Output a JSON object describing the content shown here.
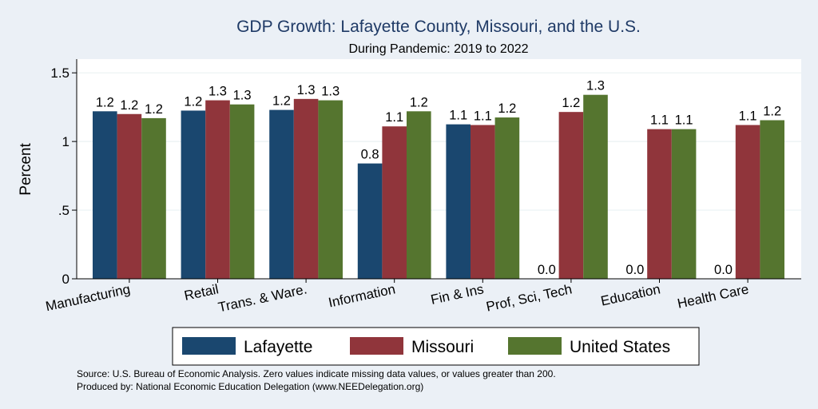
{
  "chart_data": {
    "type": "bar",
    "title": "GDP Growth: Lafayette County, Missouri, and the U.S.",
    "subtitle": "During Pandemic: 2019 to 2022",
    "xlabel": "",
    "ylabel": "Percent",
    "ylim": [
      0,
      1.6
    ],
    "yticks": [
      0,
      0.5,
      1,
      1.5
    ],
    "ytick_labels": [
      "0",
      ".5",
      "1",
      "1.5"
    ],
    "grid": true,
    "categories": [
      "Manufacturing",
      "Retail",
      "Trans. & Ware.",
      "Information",
      "Fin & Ins",
      "Prof, Sci, Tech",
      "Education",
      "Health Care"
    ],
    "series": [
      {
        "name": "Lafayette",
        "color": "#1a476f",
        "values": [
          1.22,
          1.225,
          1.23,
          0.84,
          1.125,
          0,
          0,
          0
        ],
        "labels": [
          "1.2",
          "1.2",
          "1.2",
          "0.8",
          "1.1",
          "0.0",
          "0.0",
          "0.0"
        ]
      },
      {
        "name": "Missouri",
        "color": "#90353b",
        "values": [
          1.2,
          1.3,
          1.31,
          1.11,
          1.12,
          1.215,
          1.09,
          1.12
        ],
        "labels": [
          "1.2",
          "1.3",
          "1.3",
          "1.1",
          "1.1",
          "1.2",
          "1.1",
          "1.1"
        ]
      },
      {
        "name": "United States",
        "color": "#55752f",
        "values": [
          1.17,
          1.27,
          1.3,
          1.22,
          1.175,
          1.34,
          1.09,
          1.155
        ],
        "labels": [
          "1.2",
          "1.3",
          "1.3",
          "1.2",
          "1.2",
          "1.3",
          "1.1",
          "1.2"
        ]
      }
    ],
    "legend_position": "bottom",
    "notes": [
      "Source: U.S. Bureau of Economic Analysis. Zero values indicate missing data values, or values greater than 200.",
      "Produced by: National Economic Education Delegation (www.NEEDelegation.org)"
    ]
  }
}
